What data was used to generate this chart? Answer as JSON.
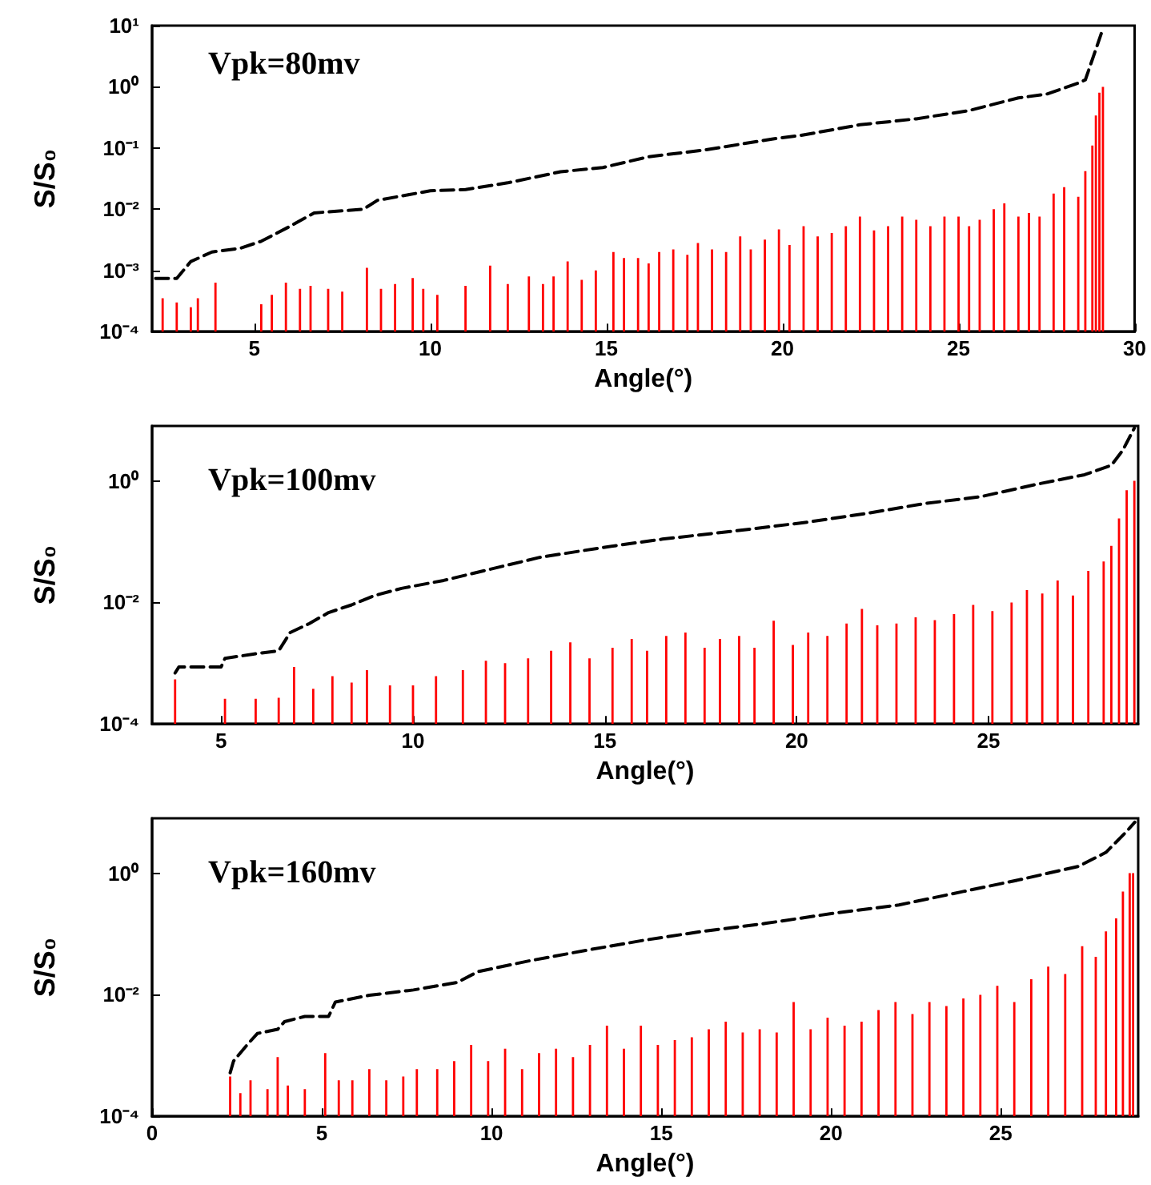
{
  "chart_data": [
    {
      "type": "bar",
      "xlabel": "Angle(°)",
      "ylabel": "S/S₀",
      "annotations": [
        "Vpk=80mv"
      ],
      "log": "y",
      "xlim": [
        2.1,
        30
      ],
      "xticks": [
        5,
        10,
        15,
        20,
        25,
        30
      ],
      "ylim": [
        0.0001,
        10
      ],
      "yticks": [
        {
          "value": 0.0001,
          "label": "10⁻⁴"
        },
        {
          "value": 0.001,
          "label": "10⁻³"
        },
        {
          "value": 0.01,
          "label": "10⁻²"
        },
        {
          "value": 0.1,
          "label": "10⁻¹"
        },
        {
          "value": 1,
          "label": "10⁰"
        },
        {
          "value": 10,
          "label": "10¹"
        }
      ],
      "series": [
        {
          "color": "#ff0000",
          "x": [
            2.4,
            2.8,
            3.2,
            3.4,
            3.9,
            5.2,
            5.5,
            5.9,
            6.3,
            6.6,
            7.1,
            7.5,
            8.2,
            8.6,
            9.0,
            9.5,
            9.8,
            10.2,
            11.0,
            11.7,
            12.2,
            12.8,
            13.2,
            13.5,
            13.9,
            14.3,
            14.7,
            15.2,
            15.5,
            15.9,
            16.2,
            16.5,
            16.9,
            17.3,
            17.6,
            18.0,
            18.4,
            18.8,
            19.1,
            19.5,
            19.9,
            20.2,
            20.6,
            21.0,
            21.4,
            21.8,
            22.2,
            22.6,
            23.0,
            23.4,
            23.8,
            24.2,
            24.6,
            25.0,
            25.3,
            25.6,
            26.0,
            26.3,
            26.7,
            27.0,
            27.3,
            27.7,
            28.0,
            28.4,
            28.6,
            28.8,
            28.9,
            29.0,
            29.1
          ],
          "values": [
            0.00035,
            0.0003,
            0.00025,
            0.00035,
            0.00063,
            0.00028,
            0.0004,
            0.00063,
            0.0005,
            0.00056,
            0.0005,
            0.00045,
            0.0011,
            0.0005,
            0.0006,
            0.00075,
            0.0005,
            0.0004,
            0.00056,
            0.0012,
            0.0006,
            0.0008,
            0.0006,
            0.0008,
            0.0014,
            0.0007,
            0.001,
            0.002,
            0.0016,
            0.0016,
            0.0013,
            0.002,
            0.0022,
            0.0018,
            0.0028,
            0.0022,
            0.002,
            0.0036,
            0.0022,
            0.0032,
            0.0047,
            0.0026,
            0.0053,
            0.0036,
            0.0041,
            0.0053,
            0.0076,
            0.0045,
            0.0053,
            0.0076,
            0.0067,
            0.0053,
            0.0076,
            0.0076,
            0.0053,
            0.0067,
            0.01,
            0.0125,
            0.0076,
            0.0087,
            0.0076,
            0.018,
            0.023,
            0.016,
            0.042,
            0.11,
            0.34,
            0.8,
            1.0
          ]
        },
        {
          "type": "line",
          "color": "#000000",
          "line_style": "dashed",
          "marker": "none",
          "x": [
            2.2,
            2.8,
            3.2,
            3.8,
            4.6,
            5.2,
            6.0,
            6.7,
            8.1,
            8.5,
            10.0,
            11.0,
            12.2,
            13.7,
            14.9,
            16.2,
            17.8,
            19.7,
            20.5,
            22.2,
            23.8,
            25.3,
            26.7,
            27.5,
            28.4,
            28.6,
            28.8,
            29.1
          ],
          "values": [
            0.00074,
            0.00074,
            0.0014,
            0.002,
            0.0023,
            0.003,
            0.0052,
            0.0087,
            0.01,
            0.014,
            0.02,
            0.021,
            0.027,
            0.041,
            0.048,
            0.072,
            0.093,
            0.14,
            0.16,
            0.24,
            0.3,
            0.41,
            0.66,
            0.76,
            1.15,
            1.3,
            2.8,
            8.9
          ]
        }
      ]
    },
    {
      "type": "bar",
      "xlabel": "Angle(°)",
      "ylabel": "S/S₀",
      "annotations": [
        "Vpk=100mv"
      ],
      "log": "y",
      "xlim": [
        3.2,
        28.9
      ],
      "xticks": [
        5,
        10,
        15,
        20,
        25
      ],
      "ylim": [
        0.0001,
        8
      ],
      "yticks": [
        {
          "value": 0.0001,
          "label": "10⁻⁴"
        },
        {
          "value": 0.01,
          "label": "10⁻²"
        },
        {
          "value": 1,
          "label": "10⁰"
        }
      ],
      "series": [
        {
          "color": "#ff0000",
          "x": [
            3.8,
            5.1,
            5.9,
            6.5,
            6.9,
            7.4,
            7.9,
            8.4,
            8.8,
            9.4,
            10.0,
            10.6,
            11.3,
            11.9,
            12.4,
            13.0,
            13.6,
            14.1,
            14.6,
            15.2,
            15.7,
            16.1,
            16.6,
            17.1,
            17.6,
            18.0,
            18.5,
            18.9,
            19.4,
            19.9,
            20.3,
            20.8,
            21.3,
            21.7,
            22.1,
            22.6,
            23.1,
            23.6,
            24.1,
            24.6,
            25.1,
            25.6,
            26.0,
            26.4,
            26.8,
            27.2,
            27.6,
            28.0,
            28.2,
            28.4,
            28.6,
            28.8
          ],
          "values": [
            0.00054,
            0.00026,
            0.00026,
            0.00027,
            0.00087,
            0.00038,
            0.00061,
            0.00048,
            0.00077,
            0.00043,
            0.00043,
            0.00061,
            0.00077,
            0.0011,
            0.001,
            0.0012,
            0.0016,
            0.0022,
            0.0012,
            0.0018,
            0.0025,
            0.0016,
            0.0028,
            0.0032,
            0.0018,
            0.0025,
            0.0028,
            0.0018,
            0.005,
            0.002,
            0.0032,
            0.0028,
            0.0045,
            0.0078,
            0.0042,
            0.0045,
            0.0057,
            0.0051,
            0.0064,
            0.0091,
            0.0072,
            0.01,
            0.016,
            0.014,
            0.023,
            0.013,
            0.033,
            0.047,
            0.085,
            0.24,
            0.7,
            1.0
          ]
        },
        {
          "type": "line",
          "color": "#000000",
          "line_style": "dashed",
          "marker": "none",
          "x": [
            3.8,
            3.9,
            5.0,
            5.1,
            5.8,
            6.5,
            6.8,
            7.3,
            7.8,
            8.4,
            9.0,
            9.7,
            10.8,
            12.0,
            13.3,
            15.0,
            16.5,
            18.4,
            20.3,
            21.8,
            23.3,
            24.8,
            26.3,
            27.5,
            28.2,
            28.5,
            28.8
          ],
          "values": [
            0.00069,
            0.00087,
            0.00087,
            0.0012,
            0.0014,
            0.0016,
            0.0032,
            0.0045,
            0.0068,
            0.0091,
            0.013,
            0.017,
            0.023,
            0.035,
            0.055,
            0.081,
            0.11,
            0.15,
            0.21,
            0.29,
            0.42,
            0.55,
            0.89,
            1.26,
            1.8,
            3.2,
            7.4
          ]
        }
      ]
    },
    {
      "type": "bar",
      "xlabel": "Angle(°)",
      "ylabel": "S/S₀",
      "annotations": [
        "Vpk=160mv"
      ],
      "log": "y",
      "xlim": [
        0,
        29.05
      ],
      "xticks": [
        0,
        5,
        10,
        15,
        20,
        25
      ],
      "ylim": [
        0.0001,
        8
      ],
      "yticks": [
        {
          "value": 0.0001,
          "label": "10⁻⁴"
        },
        {
          "value": 0.01,
          "label": "10⁻²"
        },
        {
          "value": 1,
          "label": "10⁰"
        }
      ],
      "series": [
        {
          "color": "#ff0000",
          "x": [
            2.3,
            2.6,
            2.9,
            3.4,
            3.7,
            4.0,
            4.5,
            5.1,
            5.5,
            5.9,
            6.4,
            6.9,
            7.4,
            7.8,
            8.4,
            8.9,
            9.4,
            9.9,
            10.4,
            10.9,
            11.4,
            11.9,
            12.4,
            12.9,
            13.4,
            13.9,
            14.4,
            14.9,
            15.4,
            15.9,
            16.4,
            16.9,
            17.4,
            17.9,
            18.4,
            18.9,
            19.4,
            19.9,
            20.4,
            20.9,
            21.4,
            21.9,
            22.4,
            22.9,
            23.4,
            23.9,
            24.4,
            24.9,
            25.4,
            25.9,
            26.4,
            26.9,
            27.4,
            27.8,
            28.1,
            28.4,
            28.6,
            28.8,
            28.9
          ],
          "values": [
            0.00045,
            0.00024,
            0.00039,
            0.00028,
            0.00094,
            0.00032,
            0.00028,
            0.0011,
            0.00039,
            0.00039,
            0.0006,
            0.00039,
            0.00045,
            0.0006,
            0.0006,
            0.00081,
            0.0015,
            0.00081,
            0.0013,
            0.0006,
            0.0011,
            0.0013,
            0.00094,
            0.0015,
            0.0031,
            0.0013,
            0.0031,
            0.0015,
            0.0018,
            0.002,
            0.0027,
            0.0036,
            0.0024,
            0.0027,
            0.0024,
            0.0076,
            0.0027,
            0.0042,
            0.0031,
            0.0036,
            0.0056,
            0.0076,
            0.0048,
            0.0076,
            0.0065,
            0.0087,
            0.01,
            0.014,
            0.0076,
            0.018,
            0.029,
            0.022,
            0.063,
            0.042,
            0.11,
            0.18,
            0.5,
            1.0,
            1.0
          ]
        },
        {
          "type": "line",
          "color": "#000000",
          "line_style": "dashed",
          "marker": "none",
          "x": [
            2.3,
            2.4,
            2.8,
            3.1,
            3.7,
            3.9,
            4.5,
            5.2,
            5.4,
            6.4,
            7.7,
            9.0,
            9.6,
            11.1,
            12.8,
            14.5,
            16.2,
            18.1,
            20.1,
            22.0,
            23.9,
            25.6,
            27.3,
            28.1,
            28.7,
            28.95
          ],
          "values": [
            0.00052,
            0.00081,
            0.0015,
            0.0023,
            0.0027,
            0.0036,
            0.0044,
            0.0044,
            0.0076,
            0.0098,
            0.012,
            0.016,
            0.024,
            0.036,
            0.054,
            0.079,
            0.11,
            0.15,
            0.22,
            0.3,
            0.5,
            0.79,
            1.3,
            2.2,
            4.8,
            6.9
          ]
        }
      ]
    }
  ]
}
